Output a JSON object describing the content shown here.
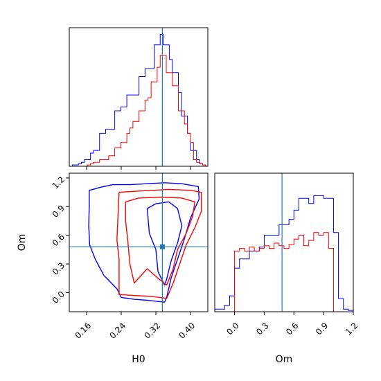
{
  "chart_data": {
    "type": "corner",
    "parameters": [
      "H0",
      "Om"
    ],
    "truth": {
      "H0": 0.335,
      "Om": 0.48
    },
    "colors": {
      "series_1": "#0000ff",
      "series_2": "#ff0000",
      "truth": "#1f77b4"
    },
    "panels": [
      {
        "id": "hist-h0",
        "type": "histogram",
        "xlim": [
          0.12,
          0.44
        ],
        "ylim": [
          0,
          1.05
        ],
        "xticks": [
          0.16,
          0.24,
          0.32,
          0.4
        ],
        "tick_labels_visible": false,
        "series": [
          {
            "color": "#0000ff",
            "bin_edges": [
              0.127,
              0.134,
              0.141,
              0.148,
              0.155,
              0.162,
              0.169,
              0.176,
              0.183,
              0.19,
              0.197,
              0.204,
              0.211,
              0.218,
              0.225,
              0.232,
              0.239,
              0.246,
              0.253,
              0.26,
              0.267,
              0.274,
              0.281,
              0.288,
              0.295,
              0.302,
              0.309,
              0.316,
              0.323,
              0.33,
              0.337,
              0.344,
              0.351,
              0.358,
              0.365,
              0.372,
              0.379,
              0.386,
              0.393,
              0.4,
              0.407,
              0.414,
              0.421,
              0.428,
              0.435
            ],
            "counts": [
              0.01,
              0.01,
              0.02,
              0.03,
              0.05,
              0.05,
              0.1,
              0.12,
              0.12,
              0.25,
              0.25,
              0.28,
              0.28,
              0.28,
              0.42,
              0.42,
              0.45,
              0.45,
              0.54,
              0.54,
              0.54,
              0.54,
              0.68,
              0.68,
              0.74,
              0.74,
              0.74,
              0.92,
              0.92,
              1.0,
              0.92,
              0.92,
              0.81,
              0.71,
              0.71,
              0.56,
              0.38,
              0.38,
              0.25,
              0.12,
              0.12,
              0.05,
              0.02,
              0.01
            ]
          },
          {
            "color": "#ff0000",
            "bin_edges": [
              0.127,
              0.134,
              0.141,
              0.148,
              0.155,
              0.162,
              0.169,
              0.176,
              0.183,
              0.19,
              0.197,
              0.204,
              0.211,
              0.218,
              0.225,
              0.232,
              0.239,
              0.246,
              0.253,
              0.26,
              0.267,
              0.274,
              0.281,
              0.288,
              0.295,
              0.302,
              0.309,
              0.316,
              0.323,
              0.33,
              0.337,
              0.344,
              0.351,
              0.358,
              0.365,
              0.372,
              0.379,
              0.386,
              0.393,
              0.4,
              0.407,
              0.414,
              0.421,
              0.428,
              0.435
            ],
            "counts": [
              0.0,
              0.0,
              0.0,
              0.0,
              0.0,
              0.01,
              0.02,
              0.03,
              0.03,
              0.05,
              0.05,
              0.05,
              0.08,
              0.08,
              0.14,
              0.14,
              0.18,
              0.18,
              0.25,
              0.29,
              0.34,
              0.34,
              0.42,
              0.42,
              0.5,
              0.52,
              0.64,
              0.64,
              0.75,
              0.84,
              0.84,
              0.71,
              0.71,
              0.61,
              0.61,
              0.42,
              0.42,
              0.32,
              0.25,
              0.18,
              0.05,
              0.03,
              0.02,
              0.01
            ]
          }
        ]
      },
      {
        "id": "contour-h0-om",
        "type": "contour",
        "xlim": [
          0.12,
          0.44
        ],
        "ylim": [
          -0.2,
          1.25
        ],
        "xticks": [
          0.16,
          0.24,
          0.32,
          0.4
        ],
        "xtick_labels": [
          "0.16",
          "0.24",
          "0.32",
          "0.40"
        ],
        "yticks": [
          0.0,
          0.3,
          0.6,
          0.9,
          1.2
        ],
        "ytick_labels": [
          "0.0",
          "0.3",
          "0.6",
          "0.9",
          "1.2"
        ],
        "xlabel": "H0",
        "ylabel": "Om",
        "truth_marker": [
          0.335,
          0.48
        ],
        "contours": [
          {
            "color": "#0000ff",
            "points": [
              [
                0.166,
                1.07
              ],
              [
                0.19,
                1.1
              ],
              [
                0.22,
                1.13
              ],
              [
                0.26,
                1.13
              ],
              [
                0.3,
                1.14
              ],
              [
                0.34,
                1.15
              ],
              [
                0.38,
                1.14
              ],
              [
                0.418,
                1.11
              ],
              [
                0.42,
                0.98
              ],
              [
                0.4,
                0.78
              ],
              [
                0.385,
                0.55
              ],
              [
                0.37,
                0.35
              ],
              [
                0.355,
                0.15
              ],
              [
                0.345,
                -0.05
              ],
              [
                0.34,
                -0.1
              ],
              [
                0.3,
                -0.08
              ],
              [
                0.27,
                -0.07
              ],
              [
                0.24,
                -0.05
              ],
              [
                0.23,
                0.04
              ],
              [
                0.2,
                0.18
              ],
              [
                0.18,
                0.35
              ],
              [
                0.167,
                0.5
              ],
              [
                0.165,
                0.7
              ],
              [
                0.166,
                0.9
              ],
              [
                0.166,
                1.07
              ]
            ]
          },
          {
            "color": "#0000ff",
            "points": [
              [
                0.3,
                0.88
              ],
              [
                0.32,
                0.93
              ],
              [
                0.35,
                0.95
              ],
              [
                0.37,
                0.88
              ],
              [
                0.38,
                0.7
              ],
              [
                0.37,
                0.52
              ],
              [
                0.355,
                0.33
              ],
              [
                0.345,
                0.14
              ],
              [
                0.34,
                0.08
              ],
              [
                0.325,
                0.22
              ],
              [
                0.32,
                0.45
              ],
              [
                0.305,
                0.62
              ],
              [
                0.3,
                0.88
              ]
            ]
          },
          {
            "color": "#ff0000",
            "points": [
              [
                0.235,
                1.05
              ],
              [
                0.27,
                1.06
              ],
              [
                0.31,
                1.07
              ],
              [
                0.35,
                1.08
              ],
              [
                0.4,
                1.07
              ],
              [
                0.425,
                1.05
              ],
              [
                0.425,
                0.85
              ],
              [
                0.41,
                0.68
              ],
              [
                0.39,
                0.5
              ],
              [
                0.375,
                0.3
              ],
              [
                0.36,
                0.1
              ],
              [
                0.345,
                -0.06
              ],
              [
                0.31,
                -0.04
              ],
              [
                0.27,
                -0.03
              ],
              [
                0.235,
                -0.02
              ],
              [
                0.235,
                0.15
              ],
              [
                0.235,
                0.35
              ],
              [
                0.23,
                0.55
              ],
              [
                0.232,
                0.75
              ],
              [
                0.235,
                1.05
              ]
            ]
          },
          {
            "color": "#ff0000",
            "points": [
              [
                0.25,
                0.95
              ],
              [
                0.28,
                0.99
              ],
              [
                0.33,
                1.0
              ],
              [
                0.38,
                0.99
              ],
              [
                0.41,
                0.95
              ],
              [
                0.405,
                0.8
              ],
              [
                0.39,
                0.62
              ],
              [
                0.37,
                0.45
              ],
              [
                0.36,
                0.25
              ],
              [
                0.345,
                0.08
              ],
              [
                0.325,
                0.15
              ],
              [
                0.3,
                0.25
              ],
              [
                0.27,
                0.1
              ],
              [
                0.26,
                0.3
              ],
              [
                0.255,
                0.55
              ],
              [
                0.25,
                0.75
              ],
              [
                0.25,
                0.95
              ]
            ]
          }
        ]
      },
      {
        "id": "hist-om",
        "type": "histogram",
        "xlim": [
          -0.2,
          1.2
        ],
        "ylim": [
          0,
          1.05
        ],
        "xticks": [
          0.0,
          0.3,
          0.6,
          0.9,
          1.2
        ],
        "xtick_labels": [
          "0.0",
          "0.3",
          "0.6",
          "0.9",
          "1.2"
        ],
        "xlabel": "Om",
        "series": [
          {
            "color": "#0000ff",
            "bin_edges": [
              -0.2,
              -0.15,
              -0.1,
              -0.05,
              0.0,
              0.05,
              0.1,
              0.15,
              0.2,
              0.25,
              0.3,
              0.35,
              0.4,
              0.45,
              0.5,
              0.55,
              0.6,
              0.65,
              0.7,
              0.75,
              0.8,
              0.85,
              0.9,
              0.95,
              1.0,
              1.05,
              1.1,
              1.15,
              1.2
            ],
            "counts": [
              0.02,
              0.02,
              0.05,
              0.12,
              0.33,
              0.4,
              0.4,
              0.46,
              0.46,
              0.49,
              0.58,
              0.58,
              0.58,
              0.66,
              0.66,
              0.7,
              0.77,
              0.86,
              0.86,
              0.82,
              0.88,
              0.88,
              0.86,
              0.86,
              0.6,
              0.1,
              0.02,
              0.01
            ]
          },
          {
            "color": "#ff0000",
            "bin_edges": [
              -0.2,
              -0.15,
              -0.1,
              -0.05,
              0.0,
              0.05,
              0.1,
              0.15,
              0.2,
              0.25,
              0.3,
              0.35,
              0.4,
              0.45,
              0.5,
              0.55,
              0.6,
              0.65,
              0.7,
              0.75,
              0.8,
              0.85,
              0.9,
              0.95,
              1.0,
              1.05,
              1.1,
              1.15,
              1.2
            ],
            "counts": [
              0.0,
              0.0,
              0.0,
              0.0,
              0.46,
              0.48,
              0.46,
              0.49,
              0.46,
              0.48,
              0.5,
              0.48,
              0.52,
              0.5,
              0.48,
              0.51,
              0.55,
              0.58,
              0.5,
              0.54,
              0.6,
              0.58,
              0.6,
              0.48,
              0.0,
              0.0,
              0.0,
              0.0
            ]
          }
        ]
      }
    ]
  }
}
